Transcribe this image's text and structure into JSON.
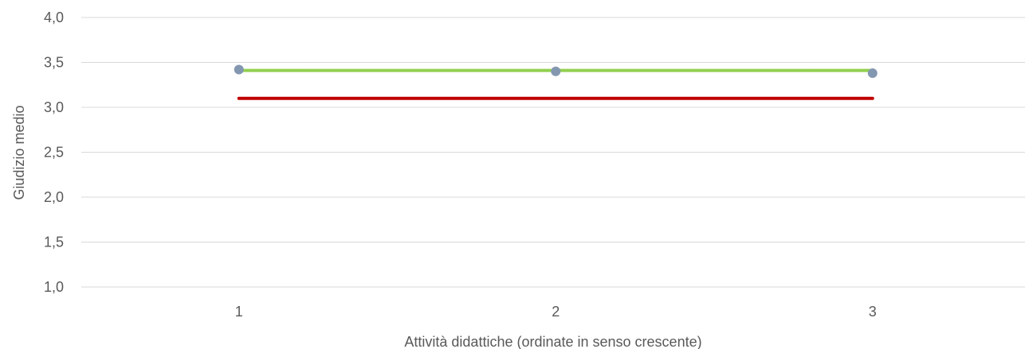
{
  "chart_data": {
    "type": "line",
    "title": "",
    "xlabel": "Attività didattiche (ordinate in senso crescente)",
    "ylabel": "Giudizio medio",
    "categories": [
      "1",
      "2",
      "3"
    ],
    "ylim": [
      1.0,
      4.0
    ],
    "y_ticks": [
      "1,0",
      "1,5",
      "2,0",
      "2,5",
      "3,0",
      "3,5",
      "4,0"
    ],
    "y_tick_values": [
      1.0,
      1.5,
      2.0,
      2.5,
      3.0,
      3.5,
      4.0
    ],
    "grid": true,
    "legend": "none",
    "series": [
      {
        "kind": "markers",
        "color": "#8497b0",
        "values": [
          3.42,
          3.4,
          3.38
        ]
      },
      {
        "kind": "line",
        "color": "#92d050",
        "values": [
          3.41,
          3.41,
          3.41
        ]
      },
      {
        "kind": "line",
        "color": "#c00000",
        "values": [
          3.1,
          3.1,
          3.1
        ]
      }
    ]
  }
}
